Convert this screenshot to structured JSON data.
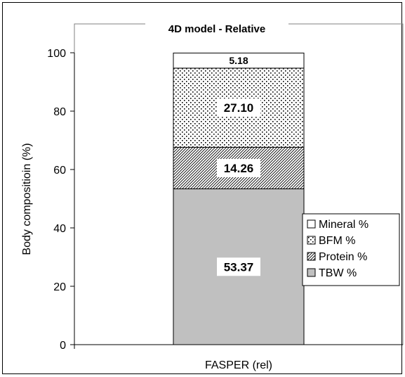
{
  "chart_data": {
    "type": "bar",
    "stacked": true,
    "title": "4D model - Relative",
    "xlabel": "",
    "ylabel": "Body compositioin (%)",
    "categories": [
      "FASPER (rel)"
    ],
    "ylim": [
      0,
      100
    ],
    "yticks": [
      "0",
      "20",
      "40",
      "60",
      "80",
      "100"
    ],
    "grid": false,
    "legend_position": "right",
    "series": [
      {
        "name": "TBW %",
        "values": [
          53.37
        ],
        "label": "53.37",
        "fill": "#c0c0c0",
        "pattern": "solid"
      },
      {
        "name": "Protein %",
        "values": [
          14.26
        ],
        "label": "14.26",
        "fill": "#ffffff",
        "pattern": "diagonal-hatch"
      },
      {
        "name": "BFM %",
        "values": [
          27.1
        ],
        "label": "27.10",
        "fill": "#ffffff",
        "pattern": "dots"
      },
      {
        "name": "Mineral %",
        "values": [
          5.18
        ],
        "label": "5.18",
        "fill": "#ffffff",
        "pattern": "none"
      }
    ],
    "legend_order": [
      "Mineral %",
      "BFM %",
      "Protein %",
      "TBW %"
    ]
  }
}
